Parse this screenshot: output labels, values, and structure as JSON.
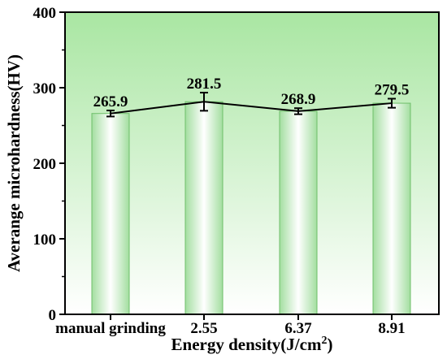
{
  "chart_data": {
    "type": "bar",
    "categories": [
      "manual grinding",
      "2.55",
      "6.37",
      "8.91"
    ],
    "values": [
      265.9,
      281.5,
      268.9,
      279.5
    ],
    "value_labels": [
      "265.9",
      "281.5",
      "268.9",
      "279.5"
    ],
    "errors": [
      4,
      12,
      4,
      6
    ],
    "overlay_line": true,
    "xlabel": "Energy density(J/cm",
    "xlabel_superscript": "2",
    "xlabel_suffix": ")",
    "ylabel": "Averange microhardness(HV)",
    "ylim": [
      0,
      400
    ],
    "yticks": [
      "0",
      "100",
      "200",
      "300",
      "400"
    ],
    "colors": {
      "background_top": "#a9e6a2",
      "background_bottom": "#ffffff",
      "bar_edge": "#6fbf6a",
      "bar_center": "#ffffff",
      "bar_side": "#a3dea0",
      "line": "#000000"
    }
  }
}
